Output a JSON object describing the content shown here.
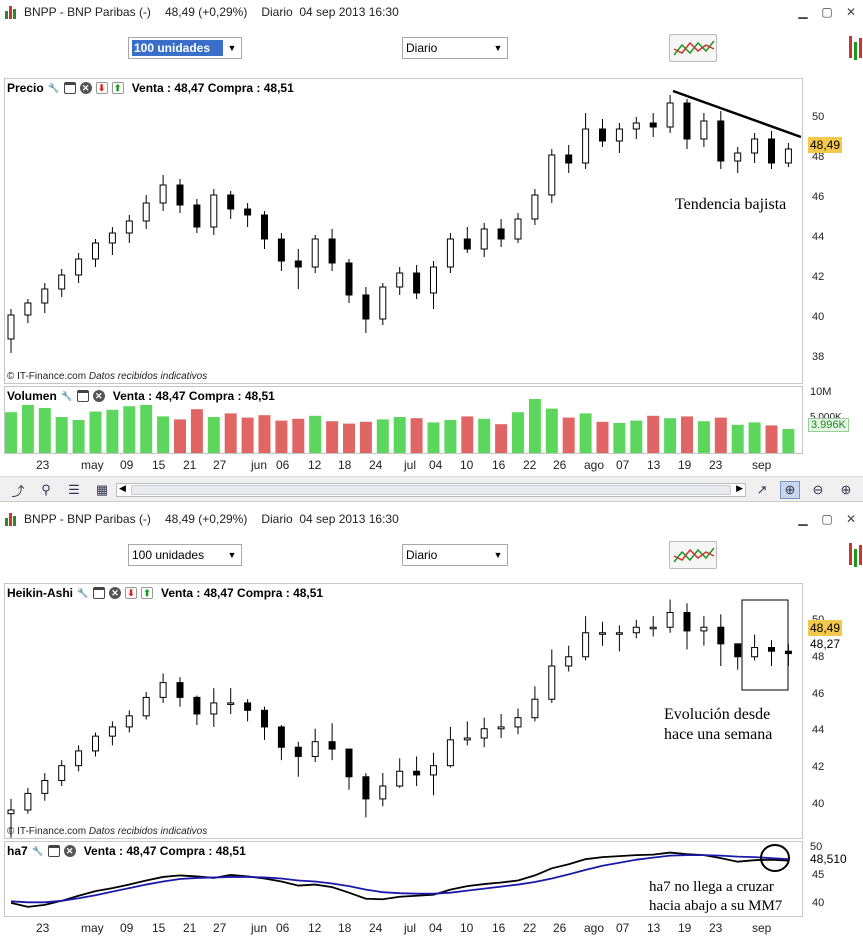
{
  "windows": [
    {
      "title": "BNPP - BNP Paribas (-)",
      "price_change": "48,49 (+0,29%)",
      "period_info": "Diario  04 sep 2013 16:30",
      "units_select": "100 unidades",
      "period_select": "Diario",
      "main_panel": {
        "name": "Precio",
        "quote": "Venta : 48,47 Compra : 48,51",
        "y_ticks": [
          "50",
          "48",
          "46",
          "44",
          "42",
          "40",
          "38"
        ],
        "price_tag": "48,49",
        "copyright": "© IT-Finance.com",
        "copyright_note": "Datos recibidos indicativos",
        "annotation": "Tendencia bajista"
      },
      "sub_panel": {
        "name": "Volumen",
        "quote": "Venta : 48,47 Compra : 48,51",
        "y_ticks": [
          "10M",
          "5.000K"
        ],
        "value_tag": "3.996K"
      },
      "date_axis": [
        "23",
        "may",
        "09",
        "15",
        "21",
        "27",
        "jun",
        "06",
        "12",
        "18",
        "24",
        "jul",
        "04",
        "10",
        "16",
        "22",
        "26",
        "ago",
        "07",
        "13",
        "19",
        "23",
        "sep"
      ]
    },
    {
      "title": "BNPP - BNP Paribas (-)",
      "price_change": "48,49 (+0,29%)",
      "period_info": "Diario  04 sep 2013 16:30",
      "units_select": "100 unidades",
      "period_select": "Diario",
      "main_panel": {
        "name": "Heikin-Ashi",
        "quote": "Venta : 48,47 Compra : 48,51",
        "y_ticks": [
          "50",
          "48",
          "46",
          "44",
          "42",
          "40"
        ],
        "price_tag": "48,49",
        "value_tag": "48,27",
        "copyright": "© IT-Finance.com",
        "copyright_note": "Datos recibidos indicativos",
        "annotation": "Evolución desde\nhace una semana"
      },
      "sub_panel": {
        "name": "ha7",
        "quote": "Venta : 48,47 Compra : 48,51",
        "y_ticks": [
          "50",
          "45",
          "40"
        ],
        "value_tag": "48,510",
        "annotation": "ha7 no llega a cruzar\nhacia abajo a su MM7"
      },
      "date_axis": [
        "23",
        "may",
        "09",
        "15",
        "21",
        "27",
        "jun",
        "06",
        "12",
        "18",
        "24",
        "jul",
        "04",
        "10",
        "16",
        "22",
        "26",
        "ago",
        "07",
        "13",
        "19",
        "23",
        "sep"
      ]
    }
  ],
  "colors": {
    "up_volume": "#5cd65c",
    "down_volume": "#e06666",
    "ha7_line": "#000000",
    "mm7_line": "#1a1aa8",
    "price_tag_bg": "#f2c94c"
  },
  "icons": [
    "app-chart-icon",
    "minimize-icon",
    "maximize-icon",
    "close-icon",
    "wrench-icon",
    "window-icon",
    "remove-icon",
    "move-down-icon",
    "move-up-icon",
    "indicators-icon",
    "zoom-in-icon",
    "zoom-out-icon",
    "zoom-fit-icon",
    "crosshair-icon",
    "list-icon",
    "grid-icon",
    "tool-icon"
  ],
  "chart_data": [
    {
      "type": "candlestick",
      "title": "Precio",
      "ylim": [
        37,
        51.5
      ],
      "x": [
        "23",
        "may",
        "09",
        "15",
        "21",
        "27",
        "jun",
        "06",
        "12",
        "18",
        "24",
        "jul",
        "04",
        "10",
        "16",
        "22",
        "26",
        "ago",
        "07",
        "13",
        "19",
        "23",
        "sep"
      ],
      "series": [
        {
          "values": [
            [
              39,
              40.5,
              38.3,
              40.2
            ],
            [
              40.2,
              41,
              39.8,
              40.8
            ],
            [
              40.8,
              41.8,
              40.3,
              41.5
            ],
            [
              41.5,
              42.5,
              41.1,
              42.2
            ],
            [
              42.2,
              43.3,
              41.8,
              43
            ],
            [
              43,
              44,
              42.6,
              43.8
            ],
            [
              43.8,
              44.6,
              43.2,
              44.3
            ],
            [
              44.3,
              45.2,
              43.8,
              44.9
            ],
            [
              44.9,
              46.2,
              44.5,
              45.8
            ],
            [
              45.8,
              47.2,
              45.4,
              46.7
            ],
            [
              46.7,
              47,
              45.3,
              45.7
            ],
            [
              45.7,
              46,
              44.3,
              44.6
            ],
            [
              44.6,
              46.5,
              44.2,
              46.2
            ],
            [
              46.2,
              46.4,
              45,
              45.5
            ],
            [
              45.5,
              45.8,
              44.6,
              45.2
            ],
            [
              45.2,
              45.4,
              43.5,
              44
            ],
            [
              44,
              44.3,
              42.4,
              42.9
            ],
            [
              42.9,
              43.5,
              41.5,
              42.6
            ],
            [
              42.6,
              44.2,
              42.3,
              44
            ],
            [
              44,
              44.5,
              42.4,
              42.8
            ],
            [
              42.8,
              43,
              40.8,
              41.2
            ],
            [
              41.2,
              41.6,
              39.3,
              40
            ],
            [
              40,
              41.8,
              39.7,
              41.6
            ],
            [
              41.6,
              42.6,
              41.2,
              42.3
            ],
            [
              42.3,
              42.7,
              41,
              41.3
            ],
            [
              41.3,
              42.9,
              40.5,
              42.6
            ],
            [
              42.6,
              44.3,
              42.3,
              44
            ],
            [
              44,
              44.6,
              43.3,
              43.5
            ],
            [
              43.5,
              44.8,
              43.1,
              44.5
            ],
            [
              44.5,
              45,
              43.6,
              44
            ],
            [
              44,
              45.3,
              43.8,
              45
            ],
            [
              45,
              46.5,
              44.7,
              46.2
            ],
            [
              46.2,
              48.5,
              45.8,
              48.2
            ],
            [
              48.2,
              48.7,
              47.3,
              47.8
            ],
            [
              47.8,
              50.3,
              47.5,
              49.5
            ],
            [
              49.5,
              50,
              48.6,
              48.9
            ],
            [
              48.9,
              49.8,
              48.3,
              49.5
            ],
            [
              49.5,
              50.1,
              49,
              49.8
            ],
            [
              49.8,
              50.3,
              49.1,
              49.6
            ],
            [
              49.6,
              51.2,
              49.3,
              50.8
            ],
            [
              50.8,
              51,
              48.5,
              49
            ],
            [
              49,
              50.3,
              48.6,
              49.9
            ],
            [
              49.9,
              50.4,
              47.5,
              47.9
            ],
            [
              47.9,
              48.6,
              47.3,
              48.3
            ],
            [
              48.3,
              49.3,
              47.8,
              49
            ],
            [
              49,
              49.4,
              47.5,
              47.8
            ],
            [
              47.8,
              48.8,
              47.6,
              48.5
            ]
          ]
        }
      ],
      "annotations": [
        "Tendencia bajista"
      ]
    },
    {
      "type": "bar",
      "title": "Volumen",
      "ylim": [
        0,
        10000
      ],
      "values_k": [
        6800,
        8200,
        7500,
        6000,
        5500,
        6900,
        7200,
        7800,
        8500,
        6100,
        5600,
        7300,
        6000,
        6600,
        5900,
        6300,
        5400,
        5700,
        6200,
        5300,
        4900,
        5200,
        5600,
        6000,
        5800,
        5100,
        5500,
        6100,
        5700,
        4800,
        6800,
        9000,
        7400,
        5900,
        6600,
        5200,
        5000,
        5400,
        6200,
        5800,
        6100,
        5300,
        5900,
        4700,
        5100,
        4600,
        3996
      ],
      "annotations": []
    },
    {
      "type": "candlestick",
      "title": "Heikin-Ashi",
      "ylim": [
        38.5,
        51.5
      ],
      "series": [
        {
          "values": [
            [
              39.6,
              40.4,
              38.3,
              39.8
            ],
            [
              39.8,
              41,
              39.6,
              40.7
            ],
            [
              40.7,
              41.8,
              40.3,
              41.4
            ],
            [
              41.4,
              42.5,
              41.1,
              42.2
            ],
            [
              42.2,
              43.3,
              41.9,
              43
            ],
            [
              43,
              44,
              42.7,
              43.8
            ],
            [
              43.8,
              44.6,
              43.3,
              44.3
            ],
            [
              44.3,
              45.2,
              44,
              44.9
            ],
            [
              44.9,
              46.2,
              44.7,
              45.9
            ],
            [
              45.9,
              47.2,
              45.6,
              46.7
            ],
            [
              46.7,
              47,
              45.4,
              45.9
            ],
            [
              45.9,
              46,
              44.4,
              45
            ],
            [
              45,
              46.4,
              44.3,
              45.6
            ],
            [
              45.6,
              46.4,
              45,
              45.6
            ],
            [
              45.6,
              45.8,
              44.6,
              45.2
            ],
            [
              45.2,
              45.4,
              43.6,
              44.3
            ],
            [
              44.3,
              44.4,
              42.5,
              43.2
            ],
            [
              43.2,
              43.5,
              41.6,
              42.7
            ],
            [
              42.7,
              44.2,
              42.4,
              43.5
            ],
            [
              43.5,
              44.5,
              42.5,
              43.1
            ],
            [
              43.1,
              43.1,
              40.9,
              41.6
            ],
            [
              41.6,
              41.8,
              39.4,
              40.4
            ],
            [
              40.4,
              41.8,
              40,
              41.1
            ],
            [
              41.1,
              42.6,
              41,
              41.9
            ],
            [
              41.9,
              42.7,
              41.1,
              41.7
            ],
            [
              41.7,
              42.9,
              40.6,
              42.2
            ],
            [
              42.2,
              44.3,
              42.1,
              43.6
            ],
            [
              43.6,
              44.6,
              43.3,
              43.7
            ],
            [
              43.7,
              44.8,
              43.2,
              44.2
            ],
            [
              44.2,
              45,
              43.7,
              44.3
            ],
            [
              44.3,
              45.3,
              43.9,
              44.8
            ],
            [
              44.8,
              46.5,
              44.6,
              45.8
            ],
            [
              45.8,
              48.5,
              45.6,
              47.6
            ],
            [
              47.6,
              48.7,
              47.3,
              48.1
            ],
            [
              48.1,
              50.3,
              47.9,
              49.4
            ],
            [
              49.4,
              50,
              48.7,
              49.4
            ],
            [
              49.4,
              49.8,
              48.4,
              49.4
            ],
            [
              49.4,
              50.1,
              49.1,
              49.7
            ],
            [
              49.7,
              50.3,
              49.2,
              49.7
            ],
            [
              49.7,
              51.2,
              49.4,
              50.5
            ],
            [
              50.5,
              51,
              48.5,
              49.5
            ],
            [
              49.5,
              50.3,
              48.7,
              49.7
            ],
            [
              49.7,
              50.4,
              47.6,
              48.8
            ],
            [
              48.8,
              48.8,
              47.4,
              48.1
            ],
            [
              48.1,
              49.3,
              47.9,
              48.6
            ],
            [
              48.6,
              49,
              47.6,
              48.4
            ],
            [
              48.4,
              48.8,
              47.6,
              48.27
            ]
          ]
        }
      ],
      "annotations": [
        "Evolución desde hace una semana"
      ]
    },
    {
      "type": "line",
      "title": "ha7",
      "ylim": [
        38,
        51
      ],
      "series": [
        {
          "values": [
            40.2,
            39.4,
            39.8,
            40.6,
            41.6,
            42.5,
            43.1,
            43.8,
            44.6,
            45.3,
            45.6,
            45.4,
            45.1,
            45.7,
            45.4,
            45.0,
            44.4,
            43.6,
            43.8,
            43.3,
            42.2,
            41.0,
            40.9,
            41.4,
            41.6,
            41.8,
            42.8,
            43.5,
            43.9,
            44.2,
            44.6,
            45.6,
            47.0,
            47.8,
            48.8,
            49.2,
            49.4,
            49.6,
            49.7,
            50.1,
            49.8,
            49.6,
            49.0,
            48.3,
            48.6,
            48.7,
            48.51
          ]
        },
        {
          "values": [
            40.5,
            40.3,
            40.3,
            40.6,
            41.1,
            41.7,
            42.4,
            43.1,
            43.8,
            44.4,
            44.9,
            45.1,
            45.2,
            45.3,
            45.3,
            45.2,
            45.0,
            44.6,
            44.4,
            44.0,
            43.5,
            42.8,
            42.3,
            42.1,
            42.0,
            42.0,
            42.2,
            42.6,
            43.0,
            43.4,
            43.8,
            44.3,
            45.0,
            45.8,
            46.7,
            47.5,
            48.1,
            48.7,
            49.1,
            49.5,
            49.6,
            49.6,
            49.5,
            49.3,
            49.2,
            49.0,
            48.8
          ]
        }
      ],
      "annotations": [
        "ha7 no llega a cruzar hacia abajo a su MM7"
      ]
    }
  ]
}
